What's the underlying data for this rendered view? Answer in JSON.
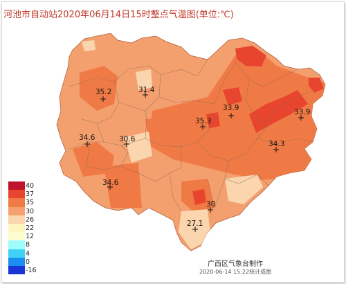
{
  "title": "河池市自动站2020年06月14日15时整点气温图(单位:℃)",
  "legend": {
    "levels": [
      {
        "label": "40",
        "color": "#c0122a"
      },
      {
        "label": "37",
        "color": "#e8452e"
      },
      {
        "label": "35",
        "color": "#f07a45"
      },
      {
        "label": "30",
        "color": "#f5a06e"
      },
      {
        "label": "26",
        "color": "#fbd5ae"
      },
      {
        "label": "22",
        "color": "#fef4c0"
      },
      {
        "label": "12",
        "color": "#fbfbd0"
      },
      {
        "label": "8",
        "color": "#9ffcfc"
      },
      {
        "label": "4",
        "color": "#3fd2f6"
      },
      {
        "label": "0",
        "color": "#1a8fef"
      },
      {
        "label": "-16",
        "color": "#1a35d6"
      }
    ]
  },
  "stations": [
    {
      "value": "35.2"
    },
    {
      "value": "31.4"
    },
    {
      "value": "34.6"
    },
    {
      "value": "30.6"
    },
    {
      "value": "35.3"
    },
    {
      "value": "33.9"
    },
    {
      "value": "33.9"
    },
    {
      "value": "34.3"
    },
    {
      "value": "34.6"
    },
    {
      "value": "30"
    },
    {
      "value": "27.1"
    }
  ],
  "credit": "广西区气象台制作",
  "timestamp": "2020-06-14 15:22统计成图",
  "colors": {
    "base": "#f4a06e",
    "warm": "#f07a45",
    "hot": "#e8452e",
    "cool": "#fbd5ae",
    "border": "#888888"
  }
}
